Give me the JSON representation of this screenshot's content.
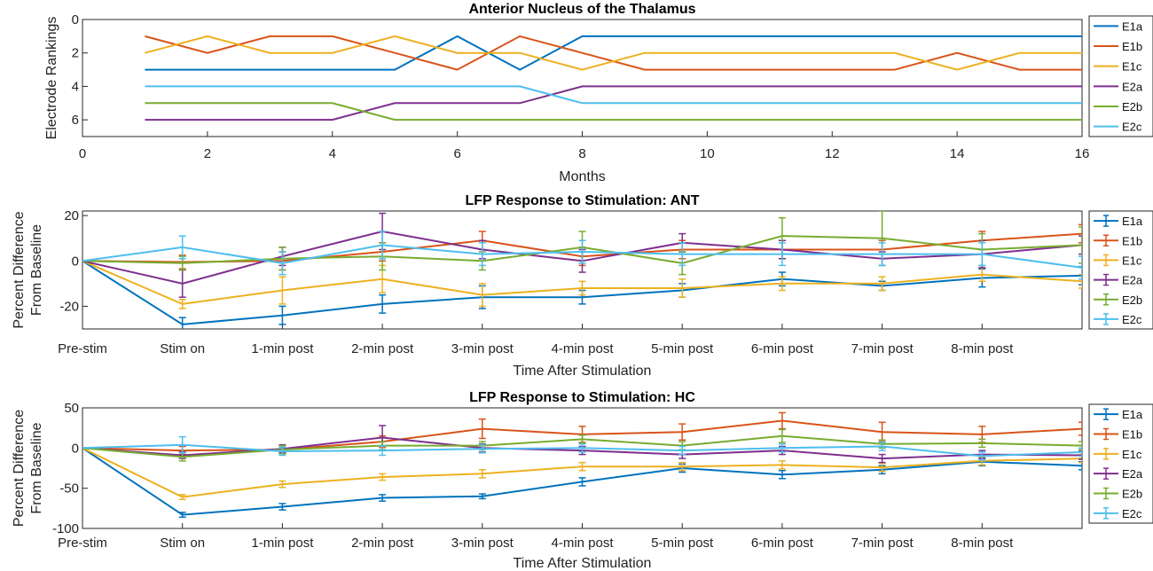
{
  "colors": {
    "E1a": "#0072BD",
    "E1b": "#D95319",
    "E1c": "#EDB120",
    "E2a": "#7E2F8E",
    "E2b": "#77AC30",
    "E2c": "#4DBEEE"
  },
  "chart_data": [
    {
      "type": "line",
      "title": "Anterior Nucleus of the Thalamus",
      "xlabel": "Months",
      "ylabel": "Electrode Rankings",
      "xlim": [
        0,
        16
      ],
      "ylim": [
        0,
        7
      ],
      "y_reversed": true,
      "xticks": [
        0,
        2,
        4,
        6,
        8,
        10,
        12,
        14,
        16
      ],
      "yticks": [
        0,
        2,
        4,
        6
      ],
      "x": [
        1,
        2,
        3,
        4,
        5,
        6,
        7,
        8,
        9,
        10,
        11,
        12,
        13,
        14,
        15,
        16
      ],
      "series": [
        {
          "name": "E1a",
          "values": [
            3,
            3,
            3,
            3,
            3,
            1,
            3,
            1,
            1,
            1,
            1,
            1,
            1,
            1,
            1,
            1
          ]
        },
        {
          "name": "E1b",
          "values": [
            1,
            2,
            1,
            1,
            2,
            3,
            1,
            2,
            3,
            3,
            3,
            3,
            3,
            2,
            3,
            3
          ]
        },
        {
          "name": "E1c",
          "values": [
            2,
            1,
            2,
            2,
            1,
            2,
            2,
            3,
            2,
            2,
            2,
            2,
            2,
            3,
            2,
            2
          ]
        },
        {
          "name": "E2a",
          "values": [
            6,
            6,
            6,
            6,
            5,
            5,
            5,
            4,
            4,
            4,
            4,
            4,
            4,
            4,
            4,
            4
          ]
        },
        {
          "name": "E2b",
          "values": [
            5,
            5,
            5,
            5,
            6,
            6,
            6,
            6,
            6,
            6,
            6,
            6,
            6,
            6,
            6,
            6
          ]
        },
        {
          "name": "E2c",
          "values": [
            4,
            4,
            4,
            4,
            4,
            4,
            4,
            5,
            5,
            5,
            5,
            5,
            5,
            5,
            5,
            5
          ]
        }
      ]
    },
    {
      "type": "line",
      "title": "LFP Response to Stimulation: ANT",
      "xlabel": "Time After Stimulation",
      "ylabel": [
        "Percent Difference",
        "From Baseline"
      ],
      "categories": [
        "Pre-stim",
        "Stim on",
        "1-min post",
        "2-min post",
        "3-min post",
        "4-min post",
        "5-min post",
        "6-min post",
        "7-min post",
        "8-min post",
        ""
      ],
      "ylim": [
        -30,
        22
      ],
      "yticks": [
        -20,
        0,
        20
      ],
      "series": [
        {
          "name": "E1a",
          "values": [
            0,
            -28,
            -24,
            -19,
            -16,
            -16,
            -13,
            -8,
            -11,
            -7.5,
            -6.5
          ],
          "err": [
            0,
            3,
            4,
            4,
            5,
            3,
            3,
            3,
            2,
            4,
            4
          ]
        },
        {
          "name": "E1b",
          "values": [
            0,
            -0.5,
            0,
            4,
            9,
            2,
            5,
            5,
            5,
            9,
            12
          ],
          "err": [
            0,
            3,
            4,
            4,
            4,
            4,
            4,
            4,
            4,
            4,
            4
          ]
        },
        {
          "name": "E1c",
          "values": [
            0,
            -19,
            -13,
            -8,
            -15,
            -12,
            -12,
            -10,
            -10,
            -6,
            -9
          ],
          "err": [
            0,
            2,
            6,
            6,
            5,
            3,
            4,
            3,
            3,
            3,
            3
          ]
        },
        {
          "name": "E2a",
          "values": [
            0,
            -10,
            2,
            13,
            5,
            0,
            8,
            5,
            1,
            3,
            7
          ],
          "err": [
            0,
            6,
            4,
            8,
            4,
            5,
            4,
            4,
            3,
            6,
            4
          ]
        },
        {
          "name": "E2b",
          "values": [
            0,
            -1,
            1,
            2,
            0,
            6,
            -1,
            11,
            10,
            5,
            7
          ],
          "err": [
            0,
            3,
            5,
            6,
            4,
            7,
            5,
            8,
            12,
            7,
            8
          ]
        },
        {
          "name": "E2c",
          "values": [
            0,
            6,
            -1,
            7,
            3,
            4,
            3,
            3,
            3,
            3,
            -3
          ],
          "err": [
            0,
            5,
            5,
            6,
            5,
            5,
            5,
            5,
            5,
            5,
            5
          ]
        }
      ]
    },
    {
      "type": "line",
      "title": "LFP Response to Stimulation: HC",
      "xlabel": "Time After Stimulation",
      "ylabel": [
        "Percent Difference",
        "From Baseline"
      ],
      "categories": [
        "Pre-stim",
        "Stim on",
        "1-min post",
        "2-min post",
        "3-min post",
        "4-min post",
        "5-min post",
        "6-min post",
        "7-min post",
        "8-min post",
        ""
      ],
      "ylim": [
        -100,
        50
      ],
      "yticks": [
        -100,
        -50,
        0,
        50
      ],
      "series": [
        {
          "name": "E1a",
          "values": [
            0,
            -83,
            -73,
            -62,
            -60,
            -42,
            -25,
            -33,
            -27,
            -17,
            -22
          ],
          "err": [
            0,
            3,
            4,
            4,
            3,
            5,
            5,
            5,
            5,
            5,
            5
          ]
        },
        {
          "name": "E1b",
          "values": [
            0,
            -3,
            -2,
            8,
            24,
            17,
            20,
            34,
            20,
            17,
            24
          ],
          "err": [
            0,
            5,
            5,
            7,
            12,
            10,
            10,
            10,
            12,
            10,
            8
          ]
        },
        {
          "name": "E1c",
          "values": [
            0,
            -61,
            -45,
            -36,
            -32,
            -23,
            -23,
            -21,
            -24,
            -16,
            -13
          ],
          "err": [
            0,
            3,
            4,
            4,
            5,
            5,
            5,
            5,
            5,
            5,
            5
          ]
        },
        {
          "name": "E2a",
          "values": [
            0,
            -9,
            -1,
            13,
            0,
            -3,
            -8,
            -3,
            -13,
            -8,
            -9
          ],
          "err": [
            0,
            4,
            5,
            15,
            5,
            5,
            5,
            5,
            5,
            5,
            5
          ]
        },
        {
          "name": "E2b",
          "values": [
            0,
            -11,
            -2,
            3,
            3,
            11,
            3,
            15,
            5,
            6,
            3
          ],
          "err": [
            0,
            5,
            5,
            5,
            5,
            5,
            5,
            8,
            5,
            5,
            5
          ]
        },
        {
          "name": "E2c",
          "values": [
            0,
            4,
            -4,
            -3,
            -1,
            0,
            -3,
            0,
            2,
            -10,
            -5
          ],
          "err": [
            0,
            10,
            5,
            6,
            5,
            5,
            5,
            5,
            5,
            5,
            5
          ]
        }
      ]
    }
  ]
}
